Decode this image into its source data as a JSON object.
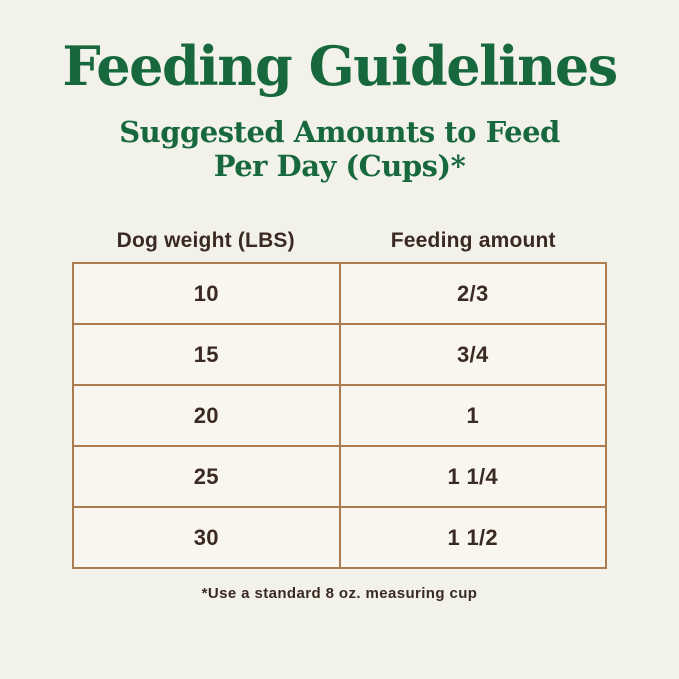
{
  "chart_data": {
    "type": "table",
    "title": "Feeding Guidelines",
    "subtitle_line1": "Suggested Amounts to Feed",
    "subtitle_line2": "Per Day (Cups)*",
    "columns": [
      "Dog weight (LBS)",
      "Feeding amount"
    ],
    "rows": [
      {
        "dog_weight_lbs": "10",
        "feeding_amount": "2/3"
      },
      {
        "dog_weight_lbs": "15",
        "feeding_amount": "3/4"
      },
      {
        "dog_weight_lbs": "20",
        "feeding_amount": "1"
      },
      {
        "dog_weight_lbs": "25",
        "feeding_amount": "1 1/4"
      },
      {
        "dog_weight_lbs": "30",
        "feeding_amount": "1 1/2"
      }
    ],
    "footnote": "*Use a standard 8 oz. measuring cup",
    "legend_position": "none",
    "grid": "table-borders"
  },
  "colors": {
    "background": "#f2f2ea",
    "cell_background": "#f8f6ef",
    "title_green": "#17693d",
    "table_border": "#aa7c50",
    "text_dark": "#3a2a22"
  }
}
